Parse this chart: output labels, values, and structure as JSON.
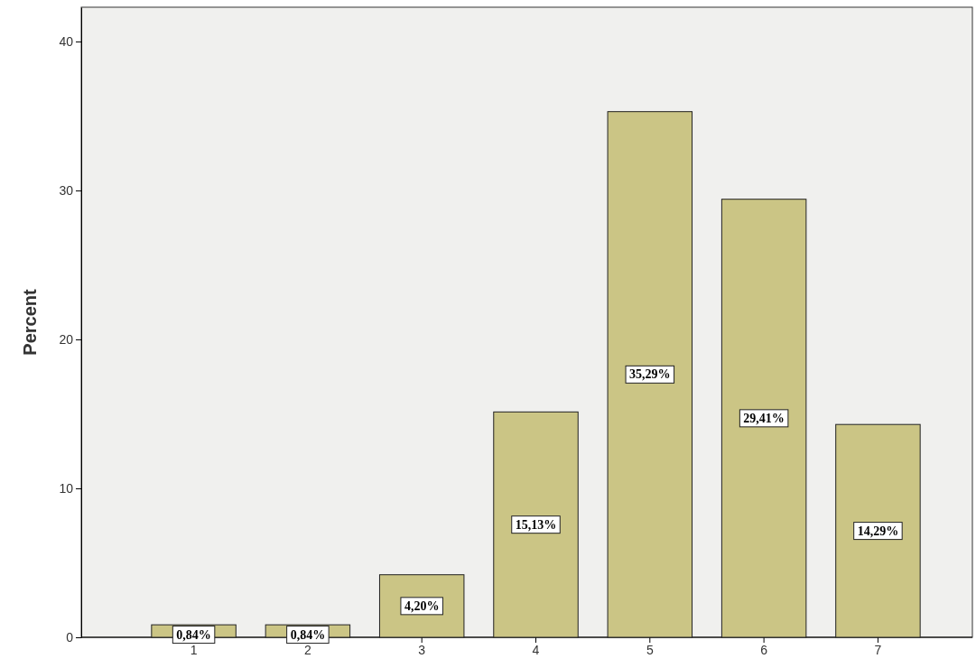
{
  "chart_data": {
    "type": "bar",
    "ylabel": "Percent",
    "categories": [
      "1",
      "2",
      "3",
      "4",
      "5",
      "6",
      "7"
    ],
    "values": [
      0.84,
      0.84,
      4.2,
      15.13,
      35.29,
      29.41,
      14.29
    ],
    "value_labels": [
      "0,84%",
      "0,84%",
      "4,20%",
      "15,13%",
      "35,29%",
      "29,41%",
      "14,29%"
    ],
    "color": "#cbc585",
    "ylim": [
      0,
      42.3
    ],
    "yticks": [
      0,
      10,
      20,
      30,
      40
    ],
    "grid": false
  }
}
